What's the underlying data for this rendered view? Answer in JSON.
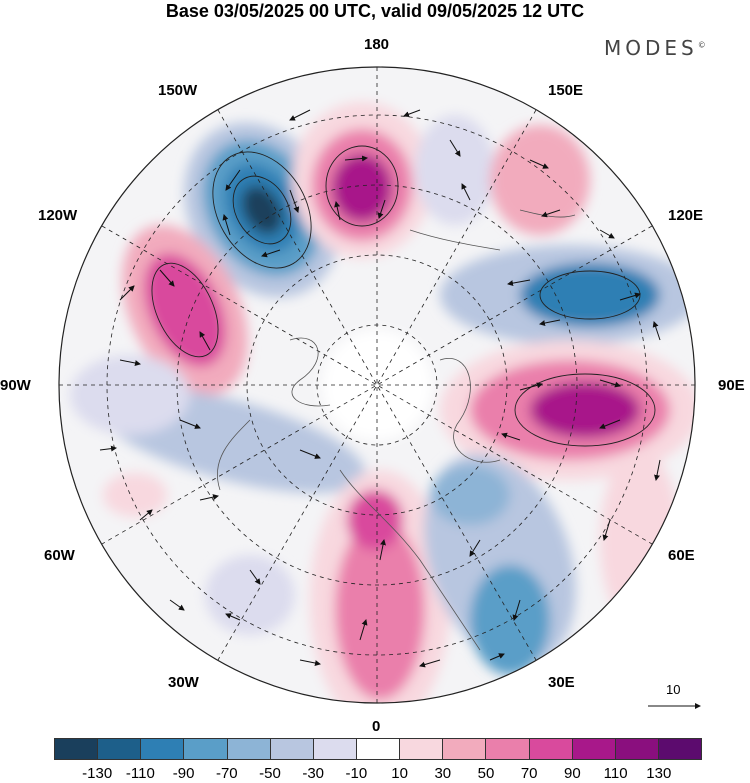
{
  "title": "Base 03/05/2025 00 UTC, valid 09/05/2025 12 UTC",
  "logo": {
    "text": "MODES",
    "mark": "©"
  },
  "longitude_labels": {
    "n180": "180",
    "w150": "150W",
    "e150": "150E",
    "w120": "120W",
    "e120": "120E",
    "w90": "90W",
    "e90": "90E",
    "w60": "60W",
    "e60": "60E",
    "w30": "30W",
    "e30": "30E",
    "s0": "0"
  },
  "reference_vector": {
    "label": "10"
  },
  "colorbar": {
    "colors": [
      "#1a3f5c",
      "#1d5f8a",
      "#2e7fb4",
      "#5a9ec8",
      "#8db4d6",
      "#b8c6e0",
      "#dcdcee",
      "#ffffff",
      "#f8d8df",
      "#f2abbd",
      "#ea7fab",
      "#d94a9d",
      "#a8188a",
      "#8a0f7e",
      "#5c0b6e"
    ],
    "tick_labels": [
      "-130",
      "-110",
      "-90",
      "-70",
      "-50",
      "-30",
      "-10",
      "10",
      "30",
      "50",
      "70",
      "90",
      "110",
      "130"
    ]
  }
}
